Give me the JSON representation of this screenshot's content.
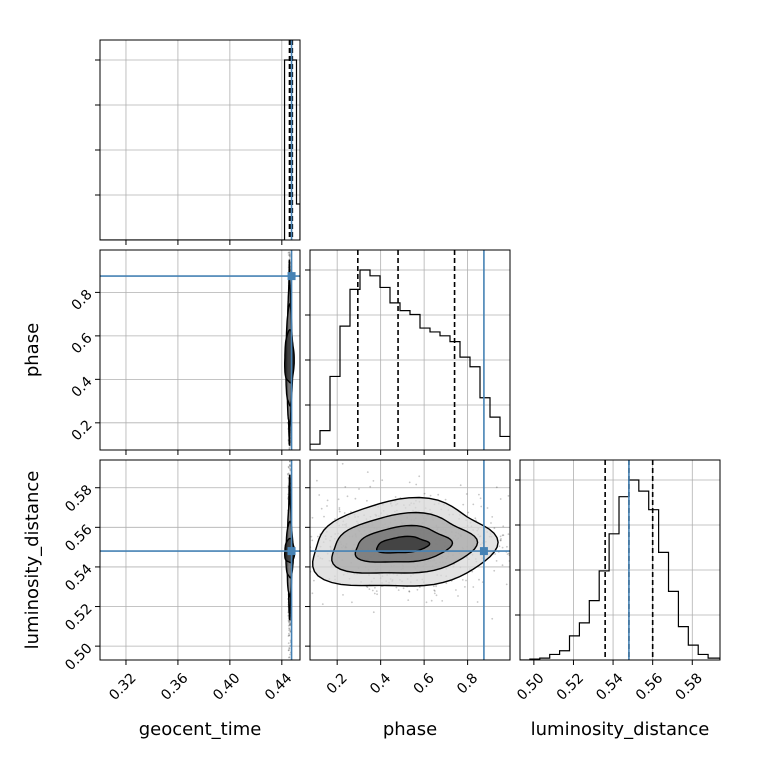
{
  "chart_data": {
    "type": "corner",
    "parameters": [
      "geocent_time",
      "phase",
      "luminosity_distance"
    ],
    "axis_labels": {
      "geocent_time": "geocent_time",
      "phase": "phase",
      "luminosity_distance": "luminosity_distance"
    },
    "ranges": {
      "geocent_time": [
        0.3,
        0.454
      ],
      "phase": [
        0.075,
        0.995
      ],
      "luminosity_distance": [
        0.493,
        0.594
      ]
    },
    "ticks": {
      "geocent_time": [
        0.32,
        0.36,
        0.4,
        0.44
      ],
      "phase": [
        0.2,
        0.4,
        0.6,
        0.8
      ],
      "luminosity_distance": [
        0.5,
        0.52,
        0.54,
        0.56,
        0.58
      ]
    },
    "tick_labels": {
      "geocent_time": [
        "0.32",
        "0.36",
        "0.40",
        "0.44"
      ],
      "phase_x": [
        "0.2",
        "0.4",
        "0.6",
        "0.8"
      ],
      "phase_y": [
        "0.2",
        "0.4",
        "0.6",
        "0.8"
      ],
      "luminosity_distance_x": [
        "0.50",
        "0.52",
        "0.54",
        "0.56",
        "0.58"
      ],
      "luminosity_distance_y": [
        "0.50",
        "0.52",
        "0.54",
        "0.56",
        "0.58"
      ]
    },
    "truths": {
      "geocent_time": 0.4475,
      "phase": 0.875,
      "luminosity_distance": 0.548
    },
    "quantiles": {
      "geocent_time": [
        0.4459,
        0.447,
        0.4481
      ],
      "phase": [
        0.295,
        0.48,
        0.74
      ],
      "luminosity_distance": [
        0.536,
        0.548,
        0.56
      ]
    },
    "histograms": {
      "geocent_time": {
        "bins": [
          0.3,
          0.4421,
          0.4444,
          0.4467,
          0.449,
          0.4513,
          0.454
        ],
        "counts": [
          0,
          1.0,
          1.0,
          1.0,
          1.0,
          0.2
        ]
      },
      "phase": {
        "bins": [
          0.075,
          0.121,
          0.167,
          0.213,
          0.259,
          0.305,
          0.351,
          0.397,
          0.443,
          0.489,
          0.535,
          0.581,
          0.627,
          0.673,
          0.719,
          0.765,
          0.811,
          0.857,
          0.903,
          0.949,
          0.995
        ],
        "counts": [
          0.03,
          0.1,
          0.38,
          0.64,
          0.83,
          0.93,
          0.9,
          0.84,
          0.76,
          0.72,
          0.7,
          0.63,
          0.61,
          0.59,
          0.56,
          0.48,
          0.43,
          0.27,
          0.17,
          0.07
        ]
      },
      "luminosity_distance": {
        "bins": [
          0.493,
          0.498,
          0.503,
          0.508,
          0.513,
          0.518,
          0.523,
          0.528,
          0.533,
          0.538,
          0.543,
          0.548,
          0.553,
          0.558,
          0.563,
          0.568,
          0.573,
          0.578,
          0.583,
          0.588,
          0.594
        ],
        "counts": [
          0.0,
          0.005,
          0.01,
          0.03,
          0.05,
          0.13,
          0.2,
          0.32,
          0.48,
          0.68,
          0.88,
          0.97,
          0.91,
          0.81,
          0.58,
          0.37,
          0.18,
          0.08,
          0.03,
          0.01
        ]
      }
    },
    "hist2d_contours": {
      "geocent_time__phase": {
        "center": [
          0.4458,
          0.5
        ],
        "levels": [
          {
            "dx": 0.0006,
            "dy": 0.42
          },
          {
            "dx": 0.0016,
            "dy": 0.33
          },
          {
            "dx": 0.0026,
            "dy": 0.23
          },
          {
            "dx": 0.0036,
            "dy": 0.12
          }
        ]
      },
      "geocent_time__luminosity_distance": {
        "center": [
          0.446,
          0.548
        ],
        "levels": [
          {
            "dx": 0.0008,
            "dy": 0.036
          },
          {
            "dx": 0.0018,
            "dy": 0.024
          },
          {
            "dx": 0.0028,
            "dy": 0.014
          },
          {
            "dx": 0.0038,
            "dy": 0.006
          }
        ]
      },
      "phase__luminosity_distance": {
        "center": [
          0.5,
          0.551
        ],
        "levels": [
          {
            "dx": 0.42,
            "dy": 0.022
          },
          {
            "dx": 0.33,
            "dy": 0.015
          },
          {
            "dx": 0.22,
            "dy": 0.009
          },
          {
            "dx": 0.12,
            "dy": 0.004
          }
        ]
      }
    },
    "grid": true,
    "colors": {
      "truth": "#4682b4",
      "hist": "#000000",
      "grid": "#b0b0b0",
      "density": "#555555"
    }
  }
}
